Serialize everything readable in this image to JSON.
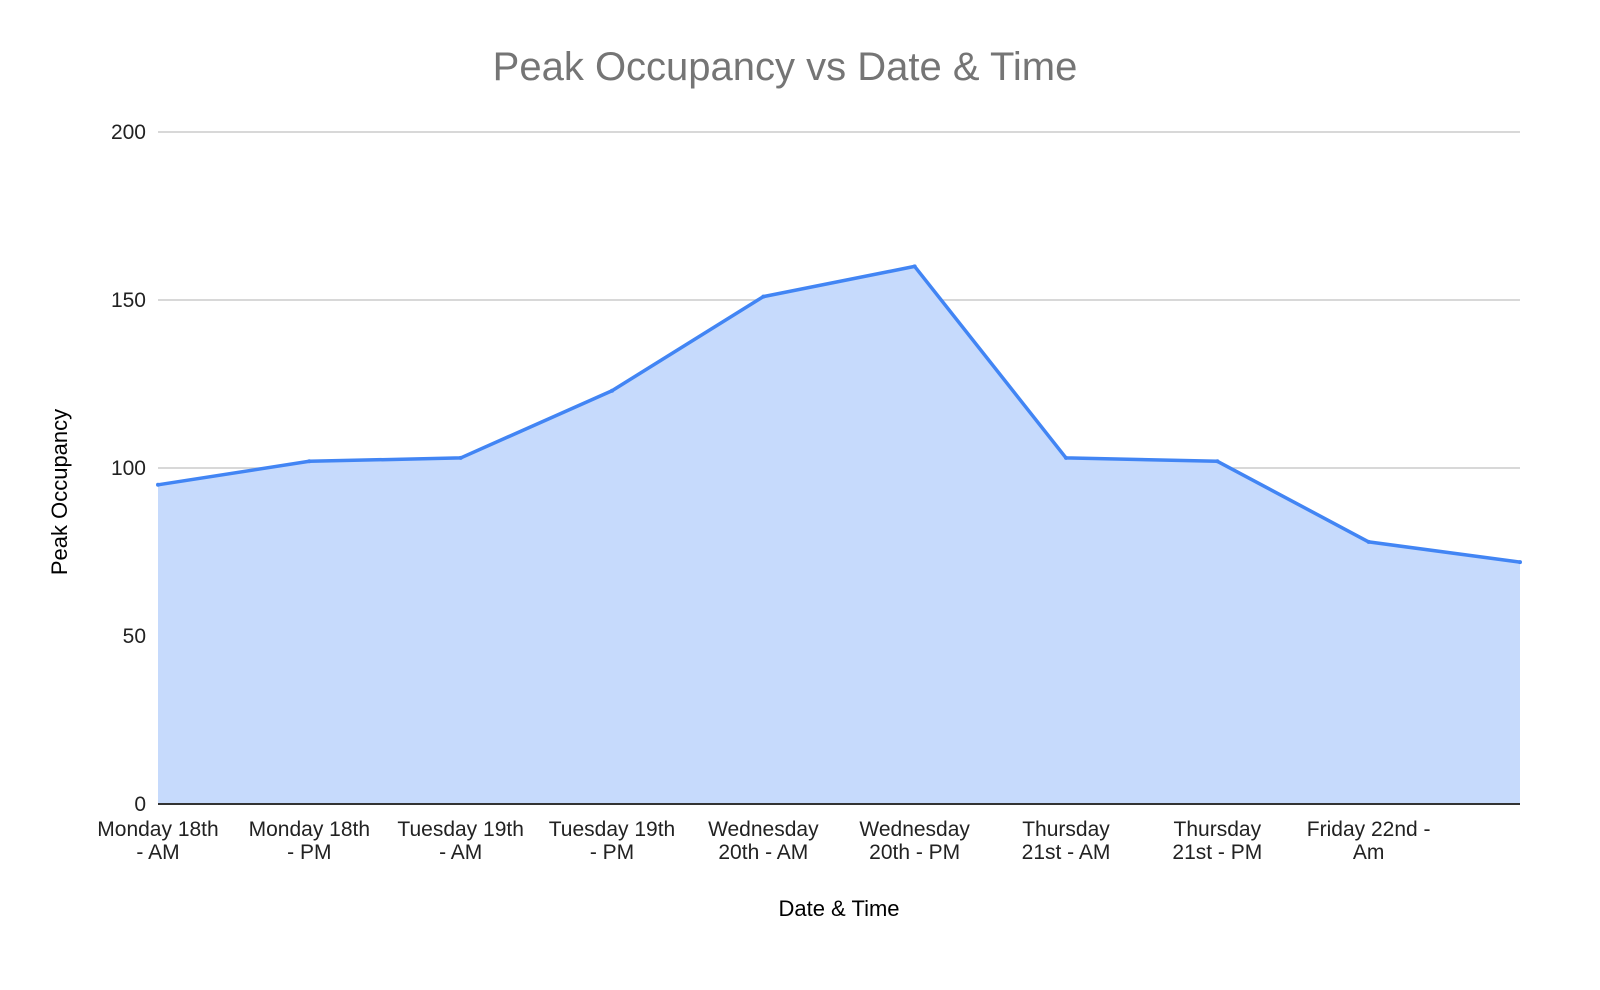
{
  "chart_data": {
    "type": "area",
    "title": "Peak Occupancy vs Date & Time",
    "xlabel": "Date & Time",
    "ylabel": "Peak Occupancy",
    "categories": [
      "Monday 18th - AM",
      "Monday 18th - PM",
      "Tuesday 19th - AM",
      "Tuesday 19th - PM",
      "Wednesday 20th - AM",
      "Wednesday 20th - PM",
      "Thursday 21st - AM",
      "Thursday 21st - PM",
      "Friday 22nd - Am",
      ""
    ],
    "category_tick_lines": [
      [
        "Monday 18th",
        "- AM"
      ],
      [
        "Monday 18th",
        "- PM"
      ],
      [
        "Tuesday 19th",
        "- AM"
      ],
      [
        "Tuesday 19th",
        "- PM"
      ],
      [
        "Wednesday",
        "20th - AM"
      ],
      [
        "Wednesday",
        "20th - PM"
      ],
      [
        "Thursday",
        "21st - AM"
      ],
      [
        "Thursday",
        "21st - PM"
      ],
      [
        "Friday 22nd -",
        "Am"
      ],
      []
    ],
    "series": [
      {
        "values": [
          95,
          102,
          103,
          123,
          151,
          160,
          103,
          102,
          78,
          72
        ]
      }
    ],
    "ylim": [
      0,
      200
    ],
    "yticks": [
      "0",
      "50",
      "100",
      "150",
      "200"
    ],
    "grid": true,
    "legend": "none",
    "line_color": "#4285f4",
    "fill_color": "#c6dafc"
  }
}
